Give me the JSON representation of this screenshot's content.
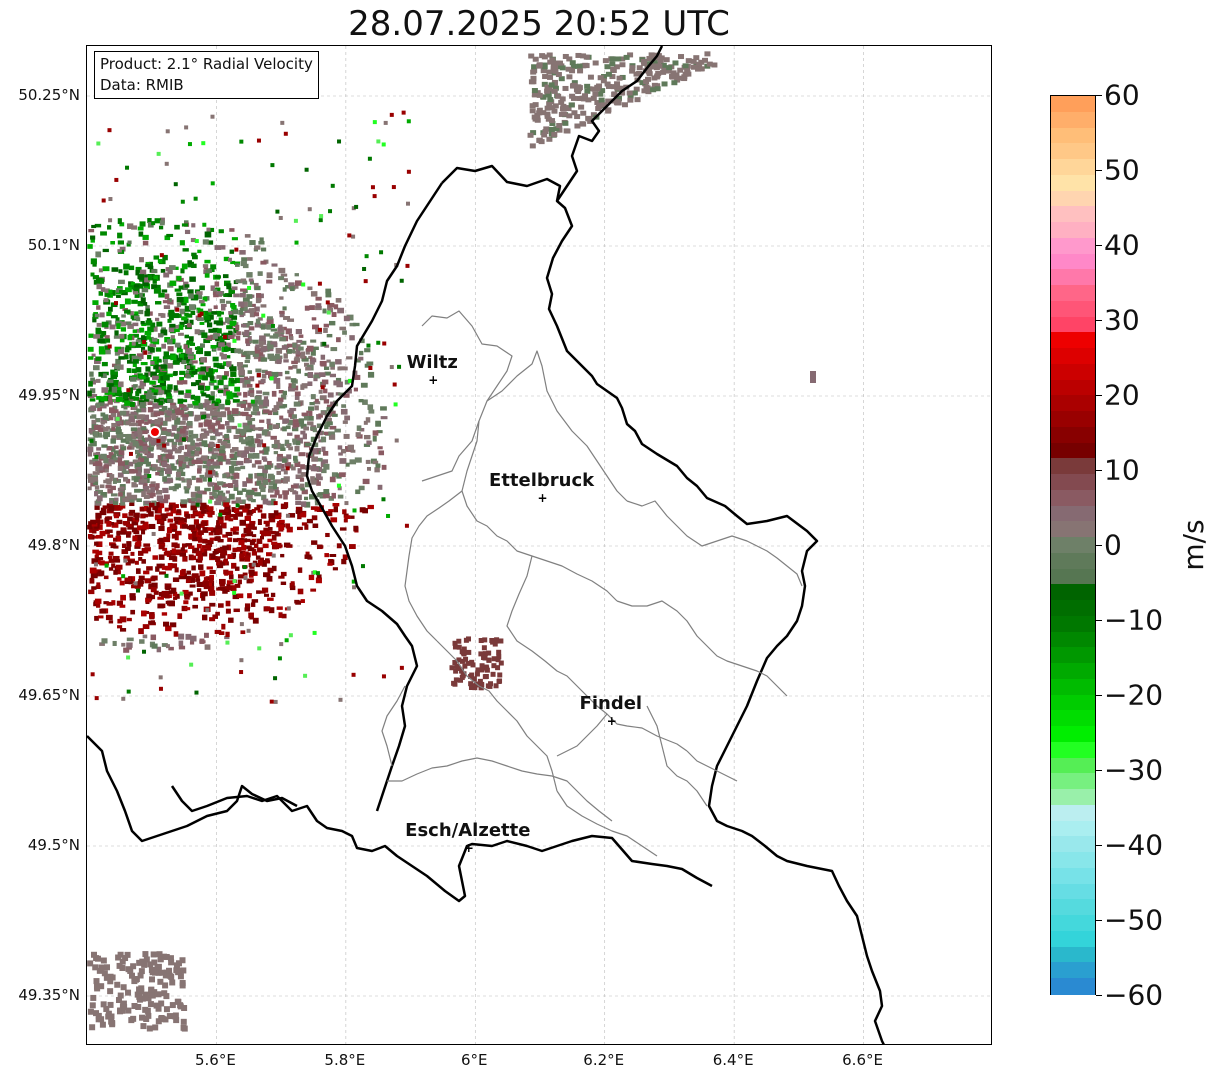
{
  "title": "28.07.2025 20:52 UTC",
  "info_box": {
    "product": "Product: 2.1° Radial Velocity",
    "data": "Data: RMIB"
  },
  "axes": {
    "lat_labels": [
      "50.25°N",
      "50.1°N",
      "49.95°N",
      "49.8°N",
      "49.65°N",
      "49.5°N",
      "49.35°N"
    ],
    "lat_values": [
      50.25,
      50.1,
      49.95,
      49.8,
      49.65,
      49.5,
      49.35
    ],
    "lon_labels": [
      "5.6°E",
      "5.8°E",
      "6°E",
      "6.2°E",
      "6.4°E",
      "6.6°E"
    ],
    "lon_values": [
      5.6,
      5.8,
      6.0,
      6.2,
      6.4,
      6.6
    ]
  },
  "cities": [
    {
      "name": "Wiltz",
      "lon": 5.935,
      "lat": 49.966
    },
    {
      "name": "Ettelbruck",
      "lon": 6.104,
      "lat": 49.848
    },
    {
      "name": "Findel",
      "lon": 6.211,
      "lat": 49.625
    },
    {
      "name": "Esch/Alzette",
      "lon": 5.99,
      "lat": 49.498
    }
  ],
  "radar_site": {
    "lon": 5.505,
    "lat": 49.914
  },
  "colorbar": {
    "unit": "m/s",
    "min": -60,
    "max": 60,
    "tick_labels": [
      "60",
      "50",
      "40",
      "30",
      "20",
      "10",
      "0",
      "−10",
      "−20",
      "−30",
      "−40",
      "−50",
      "−60"
    ],
    "tick_values": [
      60,
      50,
      40,
      30,
      20,
      10,
      0,
      -10,
      -20,
      -30,
      -40,
      -50,
      -60
    ],
    "colors_top_to_bottom": [
      "#ff9f5a",
      "#ffae6a",
      "#ffbe78",
      "#ffc887",
      "#ffd699",
      "#ffe3a8",
      "#ffd5b0",
      "#ffc0c0",
      "#ffb0c2",
      "#ff99cc",
      "#ff88c8",
      "#ff78aa",
      "#ff6688",
      "#ff5577",
      "#ff4466",
      "#ee0000",
      "#dd0000",
      "#cc0000",
      "#bb0000",
      "#aa0000",
      "#990000",
      "#880000",
      "#770000",
      "#7a3a3a",
      "#834a50",
      "#8a5a62",
      "#866a72",
      "#877473",
      "#6e8068",
      "#5f7a5a",
      "#567652",
      "#006400",
      "#006e00",
      "#007800",
      "#008800",
      "#009800",
      "#00aa00",
      "#00bb00",
      "#00cc00",
      "#00dd00",
      "#00ee00",
      "#22ff22",
      "#55ee55",
      "#77f080",
      "#99f0aa",
      "#bbeef0",
      "#aaeef0",
      "#99e8ec",
      "#88e6ea",
      "#77e2e8",
      "#66dde4",
      "#55dade",
      "#44d8dc",
      "#33d4da",
      "#2ab8cc",
      "#2a9fd0",
      "#2a8ad2"
    ]
  },
  "map": {
    "lon_range": [
      5.4,
      6.8
    ],
    "lat_range": [
      49.3,
      50.3
    ],
    "gridlines": true
  }
}
